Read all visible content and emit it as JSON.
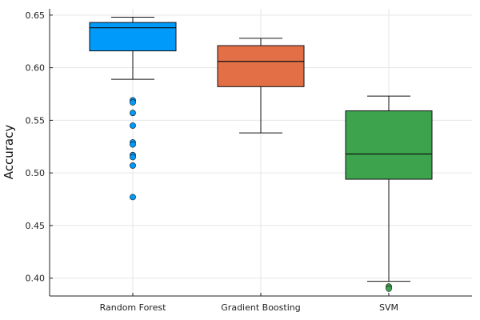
{
  "chart_data": {
    "type": "box",
    "title": "",
    "xlabel": "",
    "ylabel": "Accuracy",
    "ylim": [
      0.383,
      0.656
    ],
    "yticks": [
      0.4,
      0.45,
      0.5,
      0.55,
      0.6,
      0.65
    ],
    "ytick_labels": [
      "0.40",
      "0.45",
      "0.50",
      "0.55",
      "0.60",
      "0.65"
    ],
    "grid": true,
    "legend": "none",
    "categories": [
      "Random Forest",
      "Gradient Boosting",
      "SVM"
    ],
    "series": [
      {
        "category": "Random Forest",
        "color": "#009AFA",
        "whisker_low": 0.589,
        "q1": 0.616,
        "median": 0.638,
        "q3": 0.643,
        "whisker_high": 0.648,
        "outliers": [
          0.569,
          0.567,
          0.557,
          0.545,
          0.529,
          0.527,
          0.517,
          0.515,
          0.507,
          0.477
        ]
      },
      {
        "category": "Gradient Boosting",
        "color": "#E26F46",
        "whisker_low": 0.538,
        "q1": 0.582,
        "median": 0.606,
        "q3": 0.621,
        "whisker_high": 0.628,
        "outliers": []
      },
      {
        "category": "SVM",
        "color": "#3DA44D",
        "whisker_low": 0.397,
        "q1": 0.494,
        "median": 0.518,
        "q3": 0.559,
        "whisker_high": 0.573,
        "outliers": [
          0.392,
          0.39
        ]
      }
    ]
  }
}
